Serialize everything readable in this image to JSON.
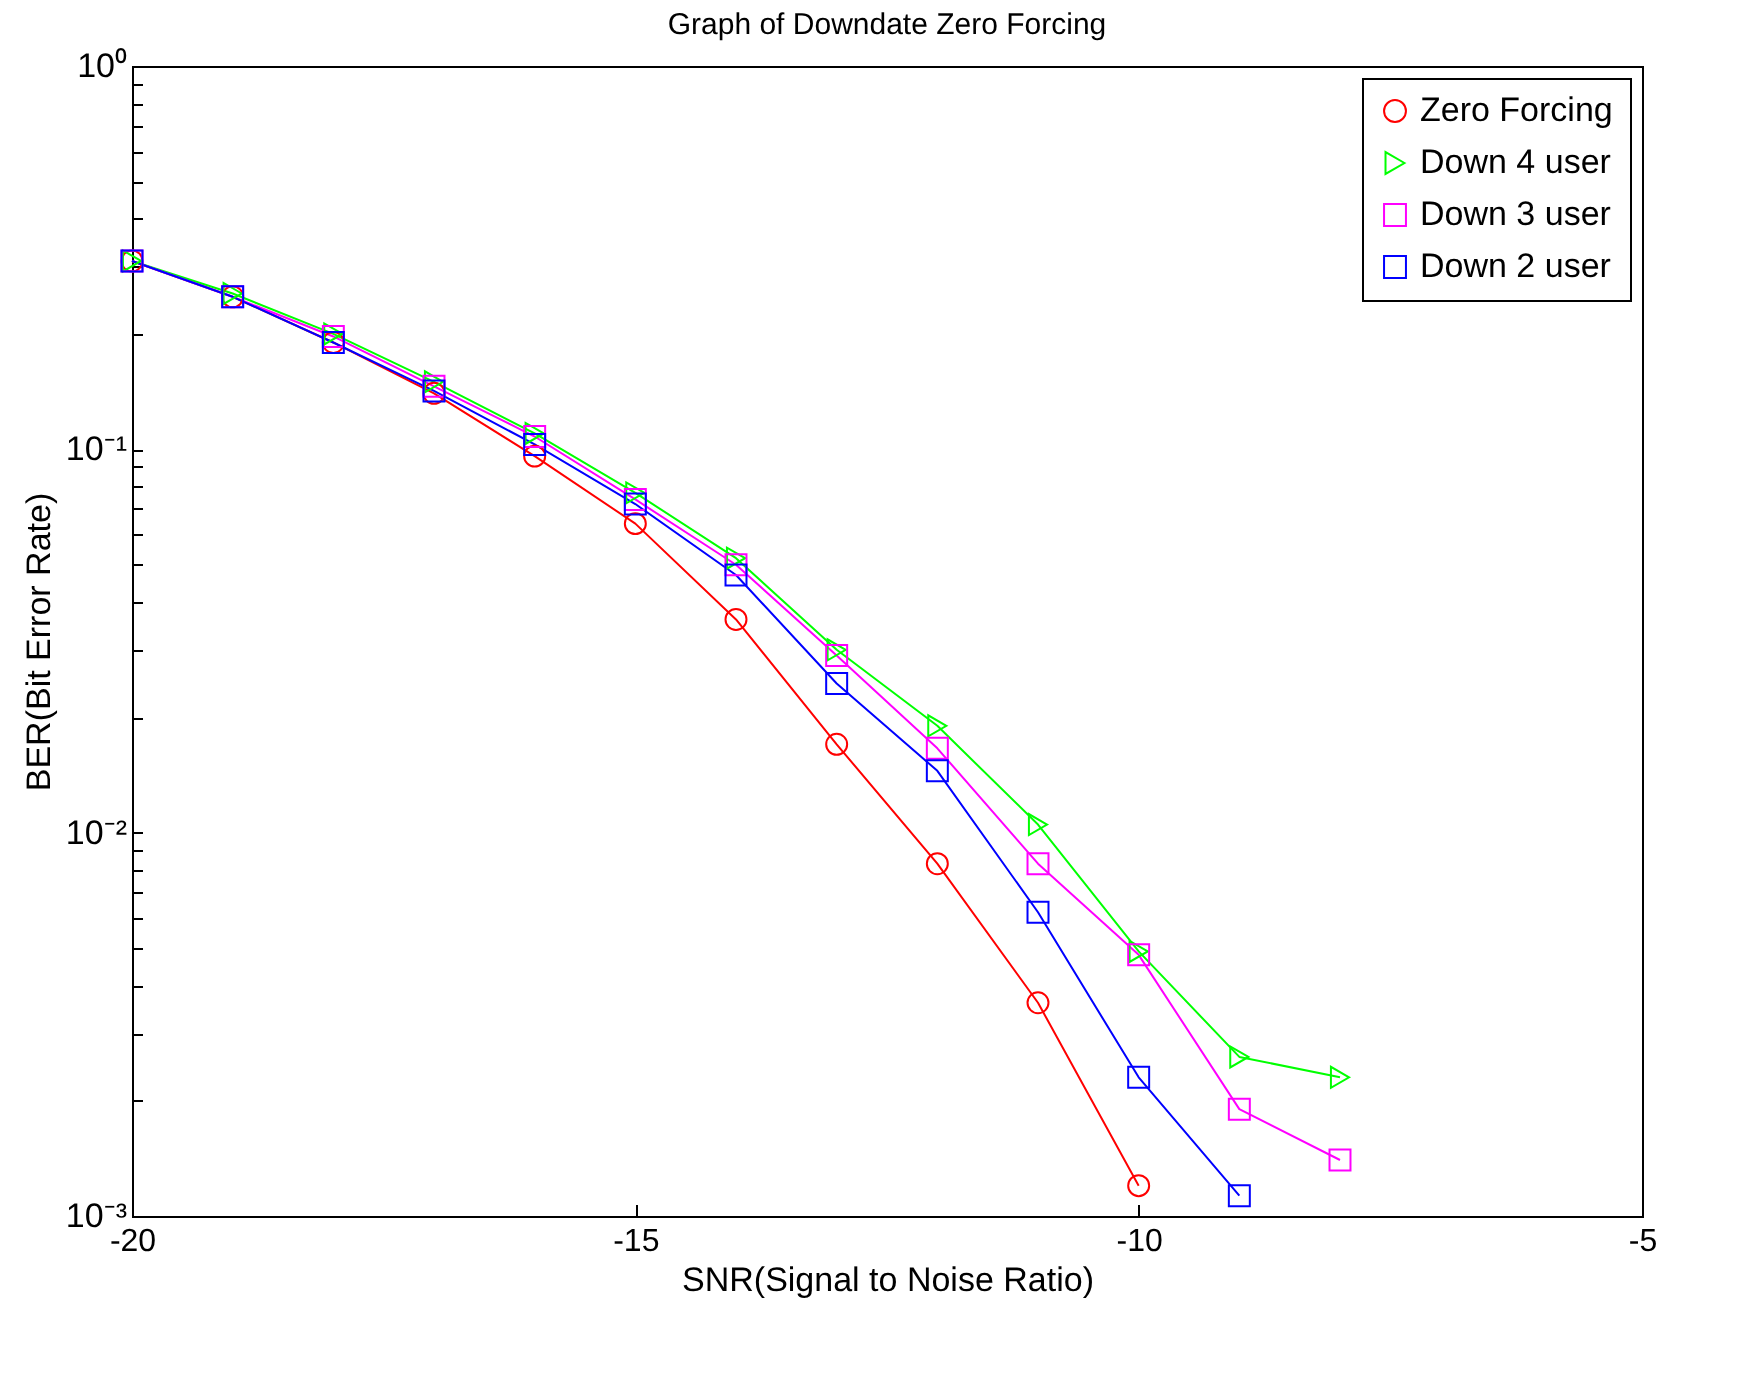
{
  "chart_data": {
    "type": "line",
    "title": "Graph of Downdate Zero Forcing",
    "xlabel": "SNR(Signal to Noise Ratio)",
    "ylabel": "BER(Bit Error Rate)",
    "x": [
      -20,
      -19,
      -18,
      -17,
      -16,
      -15,
      -14,
      -13,
      -12,
      -11,
      -10,
      -9,
      -8
    ],
    "series": [
      {
        "name": "Zero Forcing",
        "color": "#ff0000",
        "marker": "circle",
        "values": [
          0.31,
          0.25,
          0.19,
          0.14,
          0.096,
          0.064,
          0.036,
          0.017,
          0.0083,
          0.0036,
          0.0012,
          null,
          null
        ]
      },
      {
        "name": "Down 4 user",
        "color": "#00ff00",
        "marker": "triangle",
        "values": [
          0.31,
          0.255,
          0.2,
          0.15,
          0.11,
          0.077,
          0.052,
          0.03,
          0.019,
          0.0105,
          0.0049,
          0.0026,
          0.0023
        ]
      },
      {
        "name": "Down 3 user",
        "color": "#ff00ff",
        "marker": "square",
        "values": [
          0.31,
          0.25,
          0.197,
          0.146,
          0.108,
          0.074,
          0.05,
          0.029,
          0.0166,
          0.0083,
          0.0048,
          0.0019,
          0.0014
        ]
      },
      {
        "name": "Down 2 user",
        "color": "#0000ff",
        "marker": "square",
        "values": [
          0.31,
          0.25,
          0.19,
          0.142,
          0.103,
          0.072,
          0.047,
          0.0245,
          0.0145,
          0.0062,
          0.0023,
          0.00113,
          null
        ]
      }
    ],
    "xlim": [
      -20,
      -5
    ],
    "xticks": [
      -20,
      -15,
      -10,
      -5
    ],
    "ylim": [
      0.001,
      1
    ],
    "yticks": [
      {
        "value": 0.001,
        "label": "10⁻³"
      },
      {
        "value": 0.002,
        "label": null
      },
      {
        "value": 0.003,
        "label": null
      },
      {
        "value": 0.004,
        "label": null
      },
      {
        "value": 0.005,
        "label": null
      },
      {
        "value": 0.006,
        "label": null
      },
      {
        "value": 0.007,
        "label": null
      },
      {
        "value": 0.008,
        "label": null
      },
      {
        "value": 0.009,
        "label": null
      },
      {
        "value": 0.01,
        "label": "10⁻²"
      },
      {
        "value": 0.02,
        "label": null
      },
      {
        "value": 0.03,
        "label": null
      },
      {
        "value": 0.04,
        "label": null
      },
      {
        "value": 0.05,
        "label": null
      },
      {
        "value": 0.06,
        "label": null
      },
      {
        "value": 0.07,
        "label": null
      },
      {
        "value": 0.08,
        "label": null
      },
      {
        "value": 0.09,
        "label": null
      },
      {
        "value": 0.1,
        "label": "10⁻¹"
      },
      {
        "value": 0.2,
        "label": null
      },
      {
        "value": 0.3,
        "label": null
      },
      {
        "value": 0.4,
        "label": null
      },
      {
        "value": 0.5,
        "label": null
      },
      {
        "value": 0.6,
        "label": null
      },
      {
        "value": 0.7,
        "label": null
      },
      {
        "value": 0.8,
        "label": null
      },
      {
        "value": 0.9,
        "label": null
      },
      {
        "value": 1,
        "label": "10⁰"
      }
    ],
    "log": true,
    "legend": "top right",
    "grid": false
  }
}
